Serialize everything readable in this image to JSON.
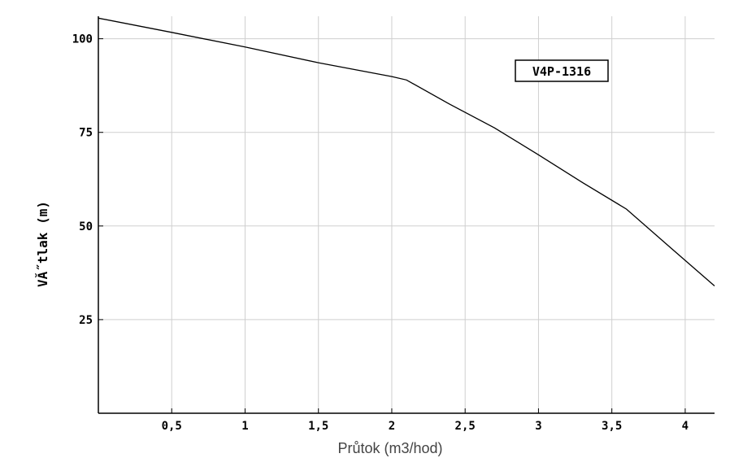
{
  "chart_data": {
    "type": "line",
    "xlabel": "Průtok (m3/hod)",
    "ylabel": "VĂ˝tlak (m)",
    "xlim": [
      0,
      4.2
    ],
    "ylim": [
      0,
      106
    ],
    "grid": true,
    "x_ticks": [
      0.5,
      1,
      1.5,
      2,
      2.5,
      3,
      3.5,
      4
    ],
    "x_tick_labels": [
      "0,5",
      "1",
      "1,5",
      "2",
      "2,5",
      "3",
      "3,5",
      "4"
    ],
    "y_ticks": [
      25,
      50,
      75,
      100
    ],
    "y_tick_labels": [
      "25",
      "50",
      "75",
      "100"
    ],
    "legend_placement": "top-right",
    "series": [
      {
        "name": "V4P-1316",
        "x": [
          0,
          0.5,
          1,
          1.5,
          2,
          2.1,
          2.4,
          2.7,
          3,
          3.3,
          3.6,
          3.9,
          4.2
        ],
        "y": [
          105.5,
          101.7,
          97.8,
          93.6,
          89.9,
          89.0,
          82.4,
          76.2,
          69.0,
          61.6,
          54.5,
          44.2,
          34.0
        ]
      }
    ]
  }
}
